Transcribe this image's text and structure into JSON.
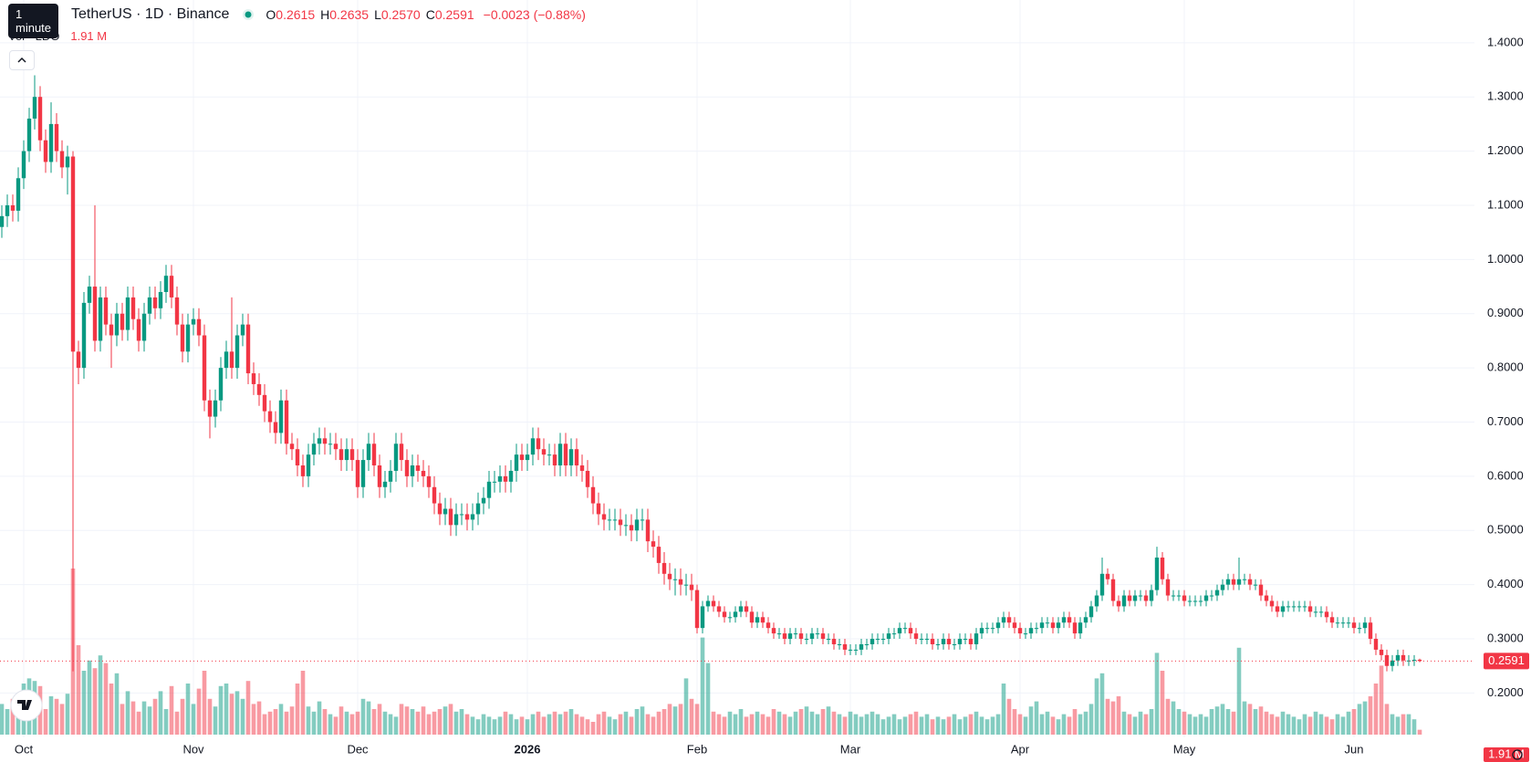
{
  "chart_data": {
    "type": "candlestick",
    "tooltip": "1 minute",
    "title": "TetherUS · 1D · Binance",
    "header_values": [
      {
        "key": "O",
        "value": 0.2615,
        "label": "0.2615"
      },
      {
        "key": "H",
        "value": 0.2635,
        "label": "0.2635"
      },
      {
        "key": "L",
        "value": 0.257,
        "label": "0.2570"
      },
      {
        "key": "C",
        "value": 0.2591,
        "label": "0.2591"
      }
    ],
    "change": {
      "value": -0.0023,
      "label": "−0.0023"
    },
    "change_pct": {
      "value": -0.88,
      "label": "(−0.88%)"
    },
    "volume_title": "Vol · LDO",
    "volume_label": {
      "value": 1.91,
      "label": "1.91 M"
    },
    "up_color": "#089981",
    "down_color": "#f23645",
    "grid": true,
    "ylim": [
      0.13,
      1.43
    ],
    "yticks": [
      {
        "value": 0.2,
        "label": "0.2000"
      },
      {
        "value": 0.3,
        "label": "0.3000"
      },
      {
        "value": 0.4,
        "label": "0.4000"
      },
      {
        "value": 0.5,
        "label": "0.5000"
      },
      {
        "value": 0.6,
        "label": "0.6000"
      },
      {
        "value": 0.7,
        "label": "0.7000"
      },
      {
        "value": 0.8,
        "label": "0.8000"
      },
      {
        "value": 0.9,
        "label": "0.9000"
      },
      {
        "value": 1.0,
        "label": "1.0000"
      },
      {
        "value": 1.1,
        "label": "1.1000"
      },
      {
        "value": 1.2,
        "label": "1.2000"
      },
      {
        "value": 1.3,
        "label": "1.3000"
      },
      {
        "value": 1.4,
        "label": "1.4000"
      }
    ],
    "categories": [
      null,
      null,
      null,
      null,
      "Oct",
      null,
      null,
      null,
      null,
      null,
      null,
      null,
      null,
      null,
      null,
      null,
      null,
      null,
      null,
      null,
      null,
      null,
      null,
      null,
      null,
      null,
      null,
      null,
      null,
      null,
      null,
      null,
      null,
      null,
      null,
      "Nov",
      null,
      null,
      null,
      null,
      null,
      null,
      null,
      null,
      null,
      null,
      null,
      null,
      null,
      null,
      null,
      null,
      null,
      null,
      null,
      null,
      null,
      null,
      null,
      null,
      null,
      null,
      null,
      null,
      null,
      "Dec",
      null,
      null,
      null,
      null,
      null,
      null,
      null,
      null,
      null,
      null,
      null,
      null,
      null,
      null,
      null,
      null,
      null,
      null,
      null,
      null,
      null,
      null,
      null,
      null,
      null,
      null,
      null,
      null,
      null,
      null,
      "2026",
      null,
      null,
      null,
      null,
      null,
      null,
      null,
      null,
      null,
      null,
      null,
      null,
      null,
      null,
      null,
      null,
      null,
      null,
      null,
      null,
      null,
      null,
      null,
      null,
      null,
      null,
      null,
      null,
      null,
      null,
      "Feb",
      null,
      null,
      null,
      null,
      null,
      null,
      null,
      null,
      null,
      null,
      null,
      null,
      null,
      null,
      null,
      null,
      null,
      null,
      null,
      null,
      null,
      null,
      null,
      null,
      null,
      null,
      null,
      "Mar",
      null,
      null,
      null,
      null,
      null,
      null,
      null,
      null,
      null,
      null,
      null,
      null,
      null,
      null,
      null,
      null,
      null,
      null,
      null,
      null,
      null,
      null,
      null,
      null,
      null,
      null,
      null,
      null,
      null,
      null,
      "Apr",
      null,
      null,
      null,
      null,
      null,
      null,
      null,
      null,
      null,
      null,
      null,
      null,
      null,
      null,
      null,
      null,
      null,
      null,
      null,
      null,
      null,
      null,
      null,
      null,
      null,
      null,
      null,
      null,
      null,
      "May",
      null,
      null,
      null,
      null,
      null,
      null,
      null,
      null,
      null,
      null,
      null,
      null,
      null,
      null,
      null,
      null,
      null,
      null,
      null,
      null,
      null,
      null,
      null,
      null,
      null,
      null,
      null,
      null,
      null,
      null,
      "Jun",
      null,
      null,
      null,
      null,
      null,
      null,
      null,
      null,
      null,
      null,
      null,
      null
    ],
    "open": [
      1.06,
      1.08,
      1.1,
      1.09,
      1.15,
      1.2,
      1.26,
      1.3,
      1.22,
      1.18,
      1.25,
      1.2,
      1.17,
      1.19,
      0.83,
      0.8,
      0.92,
      0.95,
      0.85,
      0.93,
      0.88,
      0.86,
      0.9,
      0.87,
      0.93,
      0.89,
      0.85,
      0.9,
      0.93,
      0.91,
      0.94,
      0.97,
      0.93,
      0.88,
      0.83,
      0.88,
      0.89,
      0.86,
      0.74,
      0.71,
      0.74,
      0.8,
      0.83,
      0.8,
      0.86,
      0.88,
      0.79,
      0.77,
      0.75,
      0.72,
      0.7,
      0.68,
      0.74,
      0.66,
      0.65,
      0.62,
      0.6,
      0.64,
      0.66,
      0.67,
      0.66,
      0.66,
      0.65,
      0.63,
      0.65,
      0.63,
      0.58,
      0.63,
      0.66,
      0.62,
      0.58,
      0.59,
      0.61,
      0.66,
      0.63,
      0.6,
      0.62,
      0.61,
      0.6,
      0.58,
      0.55,
      0.53,
      0.54,
      0.51,
      0.53,
      0.53,
      0.52,
      0.53,
      0.55,
      0.56,
      0.59,
      0.59,
      0.6,
      0.59,
      0.61,
      0.64,
      0.63,
      0.64,
      0.67,
      0.65,
      0.64,
      0.64,
      0.62,
      0.66,
      0.62,
      0.65,
      0.62,
      0.61,
      0.58,
      0.55,
      0.53,
      0.52,
      0.52,
      0.52,
      0.51,
      0.51,
      0.5,
      0.52,
      0.52,
      0.48,
      0.47,
      0.44,
      0.42,
      0.41,
      0.41,
      0.4,
      0.4,
      0.39,
      0.32,
      0.36,
      0.37,
      0.36,
      0.35,
      0.34,
      0.34,
      0.35,
      0.36,
      0.35,
      0.33,
      0.34,
      0.33,
      0.32,
      0.31,
      0.31,
      0.3,
      0.31,
      0.31,
      0.3,
      0.3,
      0.31,
      0.31,
      0.3,
      0.3,
      0.29,
      0.29,
      0.28,
      0.28,
      0.28,
      0.29,
      0.29,
      0.3,
      0.3,
      0.3,
      0.31,
      0.31,
      0.32,
      0.32,
      0.31,
      0.3,
      0.3,
      0.3,
      0.29,
      0.29,
      0.3,
      0.29,
      0.29,
      0.3,
      0.3,
      0.29,
      0.31,
      0.32,
      0.32,
      0.32,
      0.33,
      0.34,
      0.33,
      0.32,
      0.31,
      0.31,
      0.32,
      0.32,
      0.33,
      0.33,
      0.32,
      0.33,
      0.34,
      0.33,
      0.31,
      0.33,
      0.34,
      0.36,
      0.38,
      0.42,
      0.41,
      0.37,
      0.36,
      0.38,
      0.37,
      0.38,
      0.38,
      0.37,
      0.39,
      0.45,
      0.41,
      0.38,
      0.38,
      0.38,
      0.37,
      0.37,
      0.37,
      0.37,
      0.38,
      0.38,
      0.39,
      0.4,
      0.41,
      0.4,
      0.41,
      0.41,
      0.4,
      0.4,
      0.38,
      0.37,
      0.36,
      0.35,
      0.36,
      0.36,
      0.36,
      0.36,
      0.36,
      0.35,
      0.35,
      0.35,
      0.34,
      0.33,
      0.33,
      0.33,
      0.33,
      0.32,
      0.32,
      0.33,
      0.3,
      0.28,
      0.27,
      0.25,
      0.26,
      0.27,
      0.26,
      0.26,
      0.2615
    ],
    "high": [
      1.1,
      1.12,
      1.12,
      1.17,
      1.22,
      1.28,
      1.34,
      1.32,
      1.24,
      1.29,
      1.27,
      1.22,
      1.21,
      1.2,
      0.85,
      0.94,
      0.97,
      1.1,
      0.95,
      0.95,
      0.9,
      0.92,
      0.92,
      0.95,
      0.95,
      0.91,
      0.92,
      0.95,
      0.95,
      0.96,
      0.99,
      0.99,
      0.95,
      0.9,
      0.9,
      0.91,
      0.91,
      0.88,
      0.76,
      0.76,
      0.82,
      0.85,
      0.93,
      0.88,
      0.9,
      0.9,
      0.81,
      0.79,
      0.77,
      0.74,
      0.72,
      0.76,
      0.76,
      0.68,
      0.67,
      0.64,
      0.66,
      0.68,
      0.69,
      0.69,
      0.68,
      0.68,
      0.67,
      0.67,
      0.67,
      0.65,
      0.65,
      0.68,
      0.68,
      0.64,
      0.61,
      0.63,
      0.68,
      0.68,
      0.65,
      0.64,
      0.64,
      0.63,
      0.62,
      0.6,
      0.57,
      0.56,
      0.56,
      0.55,
      0.55,
      0.55,
      0.55,
      0.57,
      0.58,
      0.61,
      0.61,
      0.62,
      0.62,
      0.63,
      0.66,
      0.66,
      0.66,
      0.69,
      0.69,
      0.67,
      0.66,
      0.66,
      0.68,
      0.68,
      0.67,
      0.67,
      0.64,
      0.63,
      0.6,
      0.57,
      0.55,
      0.54,
      0.54,
      0.54,
      0.53,
      0.53,
      0.54,
      0.54,
      0.54,
      0.5,
      0.49,
      0.46,
      0.44,
      0.43,
      0.43,
      0.42,
      0.42,
      0.4,
      0.37,
      0.38,
      0.38,
      0.37,
      0.36,
      0.35,
      0.36,
      0.37,
      0.37,
      0.36,
      0.35,
      0.35,
      0.34,
      0.33,
      0.32,
      0.32,
      0.32,
      0.32,
      0.32,
      0.31,
      0.32,
      0.32,
      0.32,
      0.31,
      0.31,
      0.3,
      0.3,
      0.29,
      0.29,
      0.3,
      0.3,
      0.31,
      0.31,
      0.31,
      0.32,
      0.32,
      0.33,
      0.33,
      0.33,
      0.32,
      0.31,
      0.31,
      0.31,
      0.3,
      0.31,
      0.31,
      0.3,
      0.31,
      0.31,
      0.31,
      0.32,
      0.33,
      0.33,
      0.33,
      0.34,
      0.35,
      0.35,
      0.34,
      0.33,
      0.32,
      0.33,
      0.33,
      0.34,
      0.34,
      0.34,
      0.34,
      0.35,
      0.35,
      0.34,
      0.34,
      0.35,
      0.37,
      0.39,
      0.45,
      0.43,
      0.42,
      0.38,
      0.39,
      0.39,
      0.39,
      0.39,
      0.39,
      0.4,
      0.47,
      0.46,
      0.42,
      0.39,
      0.39,
      0.39,
      0.38,
      0.38,
      0.38,
      0.39,
      0.39,
      0.4,
      0.41,
      0.42,
      0.42,
      0.45,
      0.42,
      0.42,
      0.41,
      0.41,
      0.39,
      0.38,
      0.37,
      0.37,
      0.37,
      0.37,
      0.37,
      0.37,
      0.37,
      0.36,
      0.36,
      0.36,
      0.35,
      0.34,
      0.34,
      0.34,
      0.34,
      0.33,
      0.34,
      0.34,
      0.31,
      0.29,
      0.28,
      0.27,
      0.28,
      0.28,
      0.27,
      0.27,
      0.2635
    ],
    "low": [
      1.04,
      1.06,
      1.07,
      1.07,
      1.13,
      1.18,
      1.24,
      1.2,
      1.16,
      1.16,
      1.18,
      1.15,
      1.12,
      0.24,
      0.77,
      0.78,
      0.9,
      0.83,
      0.83,
      0.86,
      0.8,
      0.84,
      0.85,
      0.85,
      0.87,
      0.83,
      0.83,
      0.88,
      0.89,
      0.89,
      0.92,
      0.91,
      0.86,
      0.81,
      0.81,
      0.86,
      0.84,
      0.72,
      0.67,
      0.69,
      0.72,
      0.78,
      0.78,
      0.78,
      0.84,
      0.77,
      0.75,
      0.73,
      0.7,
      0.68,
      0.66,
      0.66,
      0.64,
      0.63,
      0.6,
      0.58,
      0.58,
      0.62,
      0.64,
      0.64,
      0.64,
      0.63,
      0.61,
      0.61,
      0.61,
      0.56,
      0.56,
      0.61,
      0.6,
      0.56,
      0.56,
      0.57,
      0.59,
      0.61,
      0.58,
      0.58,
      0.59,
      0.58,
      0.56,
      0.53,
      0.51,
      0.51,
      0.49,
      0.49,
      0.51,
      0.5,
      0.5,
      0.51,
      0.53,
      0.54,
      0.57,
      0.57,
      0.57,
      0.57,
      0.59,
      0.61,
      0.61,
      0.62,
      0.63,
      0.62,
      0.62,
      0.6,
      0.6,
      0.6,
      0.6,
      0.6,
      0.59,
      0.56,
      0.53,
      0.51,
      0.5,
      0.5,
      0.5,
      0.49,
      0.49,
      0.48,
      0.48,
      0.5,
      0.46,
      0.45,
      0.42,
      0.4,
      0.39,
      0.38,
      0.38,
      0.38,
      0.37,
      0.31,
      0.31,
      0.35,
      0.35,
      0.34,
      0.33,
      0.33,
      0.33,
      0.34,
      0.34,
      0.32,
      0.32,
      0.32,
      0.31,
      0.3,
      0.3,
      0.29,
      0.29,
      0.3,
      0.29,
      0.29,
      0.29,
      0.3,
      0.29,
      0.29,
      0.28,
      0.28,
      0.27,
      0.27,
      0.27,
      0.27,
      0.28,
      0.28,
      0.29,
      0.29,
      0.29,
      0.3,
      0.3,
      0.31,
      0.3,
      0.29,
      0.29,
      0.29,
      0.28,
      0.28,
      0.28,
      0.28,
      0.28,
      0.28,
      0.29,
      0.28,
      0.28,
      0.3,
      0.31,
      0.31,
      0.31,
      0.32,
      0.32,
      0.31,
      0.3,
      0.3,
      0.3,
      0.31,
      0.31,
      0.32,
      0.31,
      0.31,
      0.32,
      0.32,
      0.3,
      0.3,
      0.32,
      0.33,
      0.35,
      0.37,
      0.4,
      0.36,
      0.35,
      0.35,
      0.36,
      0.36,
      0.37,
      0.36,
      0.36,
      0.38,
      0.4,
      0.37,
      0.37,
      0.37,
      0.36,
      0.36,
      0.36,
      0.36,
      0.36,
      0.37,
      0.37,
      0.38,
      0.39,
      0.39,
      0.39,
      0.4,
      0.39,
      0.39,
      0.37,
      0.36,
      0.35,
      0.34,
      0.34,
      0.35,
      0.35,
      0.35,
      0.35,
      0.34,
      0.34,
      0.34,
      0.33,
      0.32,
      0.32,
      0.32,
      0.32,
      0.31,
      0.31,
      0.31,
      0.29,
      0.27,
      0.26,
      0.24,
      0.24,
      0.25,
      0.25,
      0.25,
      0.25,
      0.257
    ],
    "close": [
      1.08,
      1.1,
      1.09,
      1.15,
      1.2,
      1.26,
      1.3,
      1.22,
      1.18,
      1.25,
      1.2,
      1.17,
      1.19,
      0.83,
      0.8,
      0.92,
      0.95,
      0.85,
      0.93,
      0.88,
      0.86,
      0.9,
      0.87,
      0.93,
      0.89,
      0.85,
      0.9,
      0.93,
      0.91,
      0.94,
      0.97,
      0.93,
      0.88,
      0.83,
      0.88,
      0.89,
      0.86,
      0.74,
      0.71,
      0.74,
      0.8,
      0.83,
      0.8,
      0.86,
      0.88,
      0.79,
      0.77,
      0.75,
      0.72,
      0.7,
      0.68,
      0.74,
      0.66,
      0.65,
      0.62,
      0.6,
      0.64,
      0.66,
      0.67,
      0.66,
      0.66,
      0.65,
      0.63,
      0.65,
      0.63,
      0.58,
      0.63,
      0.66,
      0.62,
      0.58,
      0.59,
      0.61,
      0.66,
      0.63,
      0.6,
      0.62,
      0.61,
      0.6,
      0.58,
      0.55,
      0.53,
      0.54,
      0.51,
      0.53,
      0.53,
      0.52,
      0.53,
      0.55,
      0.56,
      0.59,
      0.59,
      0.6,
      0.59,
      0.61,
      0.64,
      0.63,
      0.64,
      0.67,
      0.65,
      0.64,
      0.64,
      0.62,
      0.66,
      0.62,
      0.65,
      0.62,
      0.61,
      0.58,
      0.55,
      0.53,
      0.52,
      0.52,
      0.52,
      0.51,
      0.51,
      0.5,
      0.52,
      0.52,
      0.48,
      0.47,
      0.44,
      0.42,
      0.41,
      0.41,
      0.4,
      0.4,
      0.39,
      0.32,
      0.36,
      0.37,
      0.36,
      0.35,
      0.34,
      0.34,
      0.35,
      0.36,
      0.35,
      0.33,
      0.34,
      0.33,
      0.32,
      0.31,
      0.31,
      0.3,
      0.31,
      0.31,
      0.3,
      0.3,
      0.31,
      0.31,
      0.3,
      0.3,
      0.29,
      0.29,
      0.28,
      0.28,
      0.28,
      0.29,
      0.29,
      0.3,
      0.3,
      0.3,
      0.31,
      0.31,
      0.32,
      0.32,
      0.31,
      0.3,
      0.3,
      0.3,
      0.29,
      0.29,
      0.3,
      0.29,
      0.29,
      0.3,
      0.3,
      0.29,
      0.31,
      0.32,
      0.32,
      0.32,
      0.33,
      0.34,
      0.33,
      0.32,
      0.31,
      0.31,
      0.32,
      0.32,
      0.33,
      0.33,
      0.32,
      0.33,
      0.34,
      0.33,
      0.31,
      0.33,
      0.34,
      0.36,
      0.38,
      0.42,
      0.41,
      0.37,
      0.36,
      0.38,
      0.37,
      0.38,
      0.38,
      0.37,
      0.39,
      0.45,
      0.41,
      0.38,
      0.38,
      0.38,
      0.37,
      0.37,
      0.37,
      0.37,
      0.38,
      0.38,
      0.39,
      0.4,
      0.41,
      0.4,
      0.41,
      0.41,
      0.4,
      0.4,
      0.38,
      0.37,
      0.36,
      0.35,
      0.36,
      0.36,
      0.36,
      0.36,
      0.36,
      0.35,
      0.35,
      0.35,
      0.34,
      0.33,
      0.33,
      0.33,
      0.33,
      0.32,
      0.32,
      0.33,
      0.3,
      0.28,
      0.27,
      0.25,
      0.26,
      0.27,
      0.26,
      0.26,
      0.2614,
      0.2591
    ],
    "volume": [
      12,
      10,
      14,
      11,
      20,
      22,
      21,
      19,
      10,
      15,
      14,
      12,
      16,
      65,
      35,
      25,
      29,
      26,
      31,
      28,
      20,
      24,
      12,
      17,
      13,
      9,
      13,
      11,
      14,
      17,
      10,
      19,
      9,
      14,
      20,
      12,
      18,
      25,
      14,
      11,
      19,
      20,
      16,
      17,
      14,
      21,
      12,
      13,
      8,
      9,
      10,
      12,
      9,
      11,
      20,
      25,
      11,
      9,
      13,
      10,
      8,
      7,
      11,
      9,
      8,
      9,
      14,
      13,
      10,
      12,
      9,
      8,
      7,
      12,
      11,
      10,
      9,
      11,
      8,
      9,
      10,
      11,
      12,
      9,
      10,
      8,
      7,
      6,
      8,
      7,
      6,
      7,
      9,
      8,
      6,
      7,
      6,
      8,
      9,
      7,
      8,
      9,
      8,
      9,
      10,
      8,
      7,
      6,
      5,
      8,
      9,
      7,
      6,
      8,
      9,
      7,
      10,
      11,
      8,
      7,
      9,
      10,
      12,
      11,
      12,
      22,
      14,
      12,
      38,
      28,
      9,
      8,
      7,
      9,
      8,
      10,
      7,
      8,
      9,
      8,
      7,
      10,
      9,
      8,
      7,
      9,
      10,
      11,
      9,
      8,
      10,
      11,
      9,
      8,
      7,
      9,
      8,
      7,
      8,
      9,
      8,
      6,
      7,
      8,
      6,
      7,
      8,
      9,
      7,
      8,
      6,
      7,
      6,
      7,
      8,
      6,
      7,
      8,
      9,
      7,
      6,
      7,
      8,
      20,
      14,
      10,
      8,
      7,
      11,
      13,
      8,
      9,
      7,
      6,
      8,
      7,
      10,
      8,
      9,
      12,
      22,
      24,
      14,
      13,
      15,
      9,
      8,
      7,
      9,
      8,
      10,
      32,
      25,
      14,
      13,
      10,
      9,
      8,
      7,
      8,
      7,
      10,
      11,
      12,
      10,
      9,
      34,
      13,
      12,
      10,
      11,
      9,
      8,
      7,
      9,
      8,
      7,
      6,
      8,
      7,
      9,
      8,
      7,
      6,
      8,
      7,
      9,
      10,
      12,
      13,
      15,
      20,
      27,
      12,
      8,
      7,
      8,
      8,
      6,
      1.91
    ]
  }
}
